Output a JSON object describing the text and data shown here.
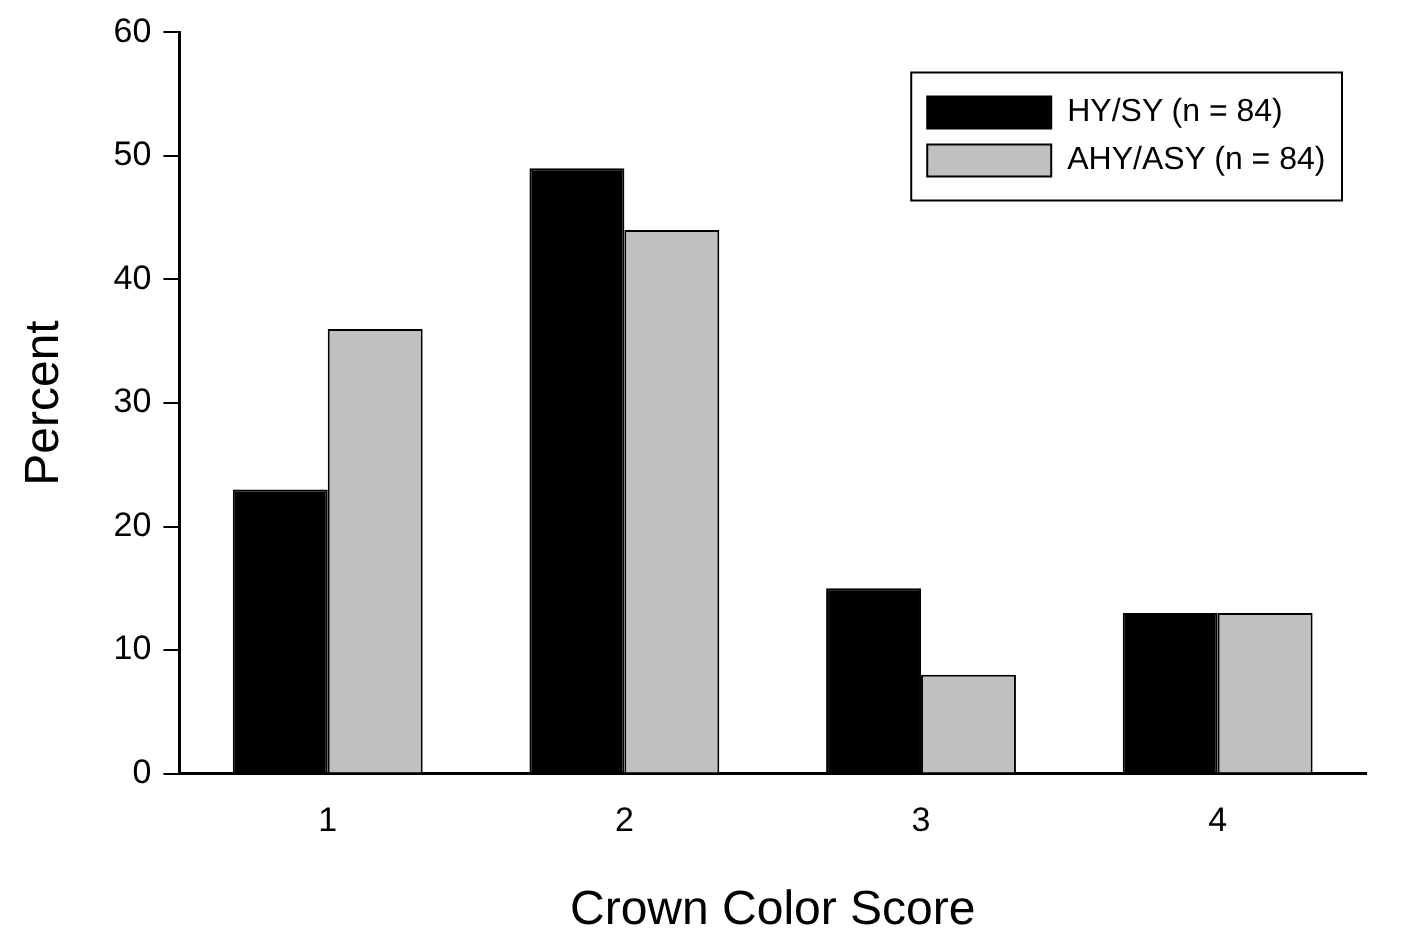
{
  "chart_data": {
    "type": "bar",
    "xlabel": "Crown Color Score",
    "ylabel": "Percent",
    "categories": [
      "1",
      "2",
      "3",
      "4"
    ],
    "series": [
      {
        "name": "HY/SY (n = 84)",
        "color": "#000000",
        "values": [
          23,
          49,
          15,
          13
        ]
      },
      {
        "name": "AHY/ASY (n = 84)",
        "color": "#c0c0c0",
        "values": [
          36,
          44,
          8,
          13
        ]
      }
    ],
    "ylim": [
      0,
      60
    ],
    "yticks": [
      0,
      10,
      20,
      30,
      40,
      50,
      60
    ],
    "grid": false,
    "legend": "top right"
  }
}
